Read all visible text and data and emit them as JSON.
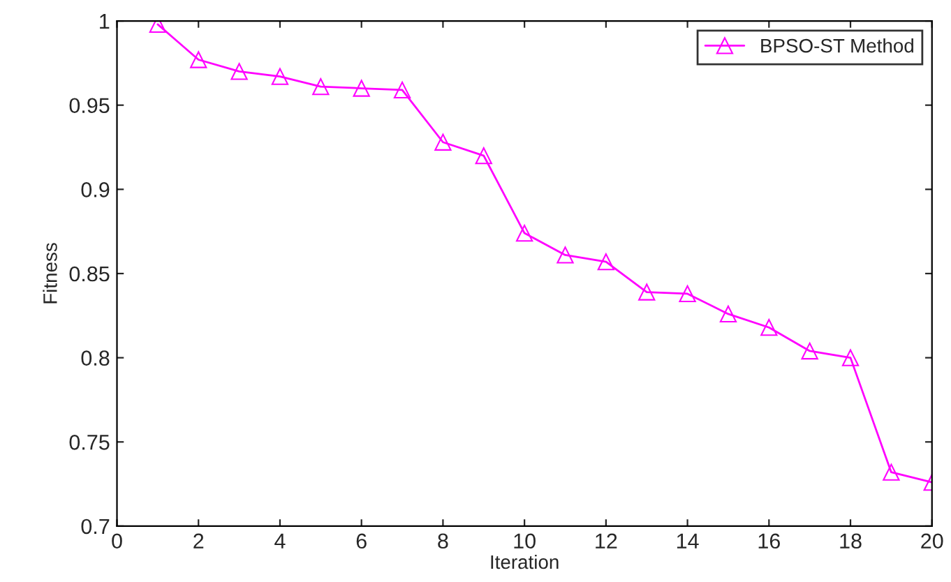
{
  "chart_data": {
    "type": "line",
    "xlabel": "Iteration",
    "ylabel": "Fitness",
    "x": [
      1,
      2,
      3,
      4,
      5,
      6,
      7,
      8,
      9,
      10,
      11,
      12,
      13,
      14,
      15,
      16,
      17,
      18,
      19,
      20
    ],
    "series": [
      {
        "name": "BPSO-ST Method",
        "color": "#ff00ff",
        "values": [
          0.998,
          0.977,
          0.97,
          0.967,
          0.961,
          0.96,
          0.959,
          0.928,
          0.92,
          0.874,
          0.861,
          0.857,
          0.839,
          0.838,
          0.826,
          0.818,
          0.804,
          0.8,
          0.732,
          0.726
        ]
      }
    ],
    "xlim": [
      0,
      20
    ],
    "xticks": [
      0,
      2,
      4,
      6,
      8,
      10,
      12,
      14,
      16,
      18,
      20
    ],
    "ylim": [
      0.7,
      1
    ],
    "yticks": [
      0.7,
      0.75,
      0.8,
      0.85,
      0.9,
      0.95,
      1
    ],
    "marker": "triangle",
    "line_style": "solid",
    "legend": "top right",
    "grid": false
  }
}
